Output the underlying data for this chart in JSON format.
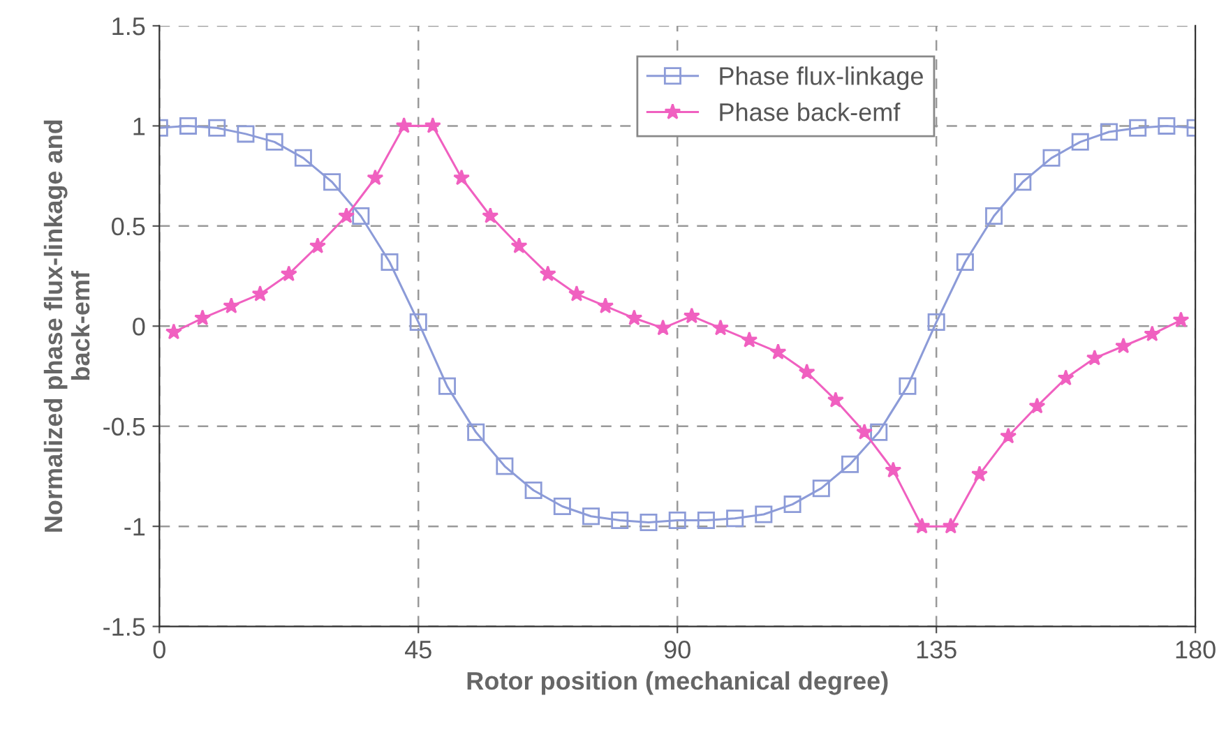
{
  "chart_data": {
    "type": "line",
    "xlabel": "Rotor position (mechanical degree)",
    "ylabel": "Normalized phase flux-linkage and\nback-emf",
    "xlim": [
      0,
      180
    ],
    "xticks": [
      0,
      45,
      90,
      135,
      180
    ],
    "ylim": [
      -1.5,
      1.5
    ],
    "yticks": [
      -1.5,
      -1,
      -0.5,
      0,
      0.5,
      1,
      1.5
    ],
    "grid": true,
    "legend": "top right",
    "line_style": "solid",
    "series": [
      {
        "name": "Phase flux-linkage",
        "color": "#8c9bd8",
        "marker": "square",
        "x": [
          0,
          5,
          10,
          15,
          20,
          25,
          30,
          35,
          40,
          45,
          50,
          55,
          60,
          65,
          70,
          75,
          80,
          85,
          90,
          95,
          100,
          105,
          110,
          115,
          120,
          125,
          130,
          135,
          140,
          145,
          150,
          155,
          160,
          165,
          170,
          175,
          180
        ],
        "values": [
          0.99,
          1.0,
          0.99,
          0.96,
          0.92,
          0.84,
          0.72,
          0.55,
          0.32,
          0.02,
          -0.3,
          -0.53,
          -0.7,
          -0.82,
          -0.9,
          -0.95,
          -0.97,
          -0.98,
          -0.97,
          -0.97,
          -0.96,
          -0.94,
          -0.89,
          -0.81,
          -0.69,
          -0.53,
          -0.3,
          0.02,
          0.32,
          0.55,
          0.72,
          0.84,
          0.92,
          0.97,
          0.99,
          1.0,
          0.99
        ]
      },
      {
        "name": "Phase back-emf",
        "color": "#f060c0",
        "marker": "star",
        "x": [
          2.5,
          7.5,
          12.5,
          17.5,
          22.5,
          27.5,
          32.5,
          37.5,
          42.5,
          47.5,
          52.5,
          57.5,
          62.5,
          67.5,
          72.5,
          77.5,
          82.5,
          87.5,
          92.5,
          97.5,
          102.5,
          107.5,
          112.5,
          117.5,
          122.5,
          127.5,
          132.5,
          137.5,
          142.5,
          147.5,
          152.5,
          157.5,
          162.5,
          167.5,
          172.5,
          177.5
        ],
        "values": [
          -0.03,
          0.04,
          0.1,
          0.16,
          0.26,
          0.4,
          0.55,
          0.74,
          1.0,
          1.0,
          0.74,
          0.55,
          0.4,
          0.26,
          0.16,
          0.1,
          0.04,
          -0.01,
          0.05,
          -0.01,
          -0.07,
          -0.13,
          -0.23,
          -0.37,
          -0.53,
          -0.72,
          -1.0,
          -1.0,
          -0.74,
          -0.55,
          -0.4,
          -0.26,
          -0.16,
          -0.1,
          -0.04,
          0.03
        ]
      }
    ]
  }
}
